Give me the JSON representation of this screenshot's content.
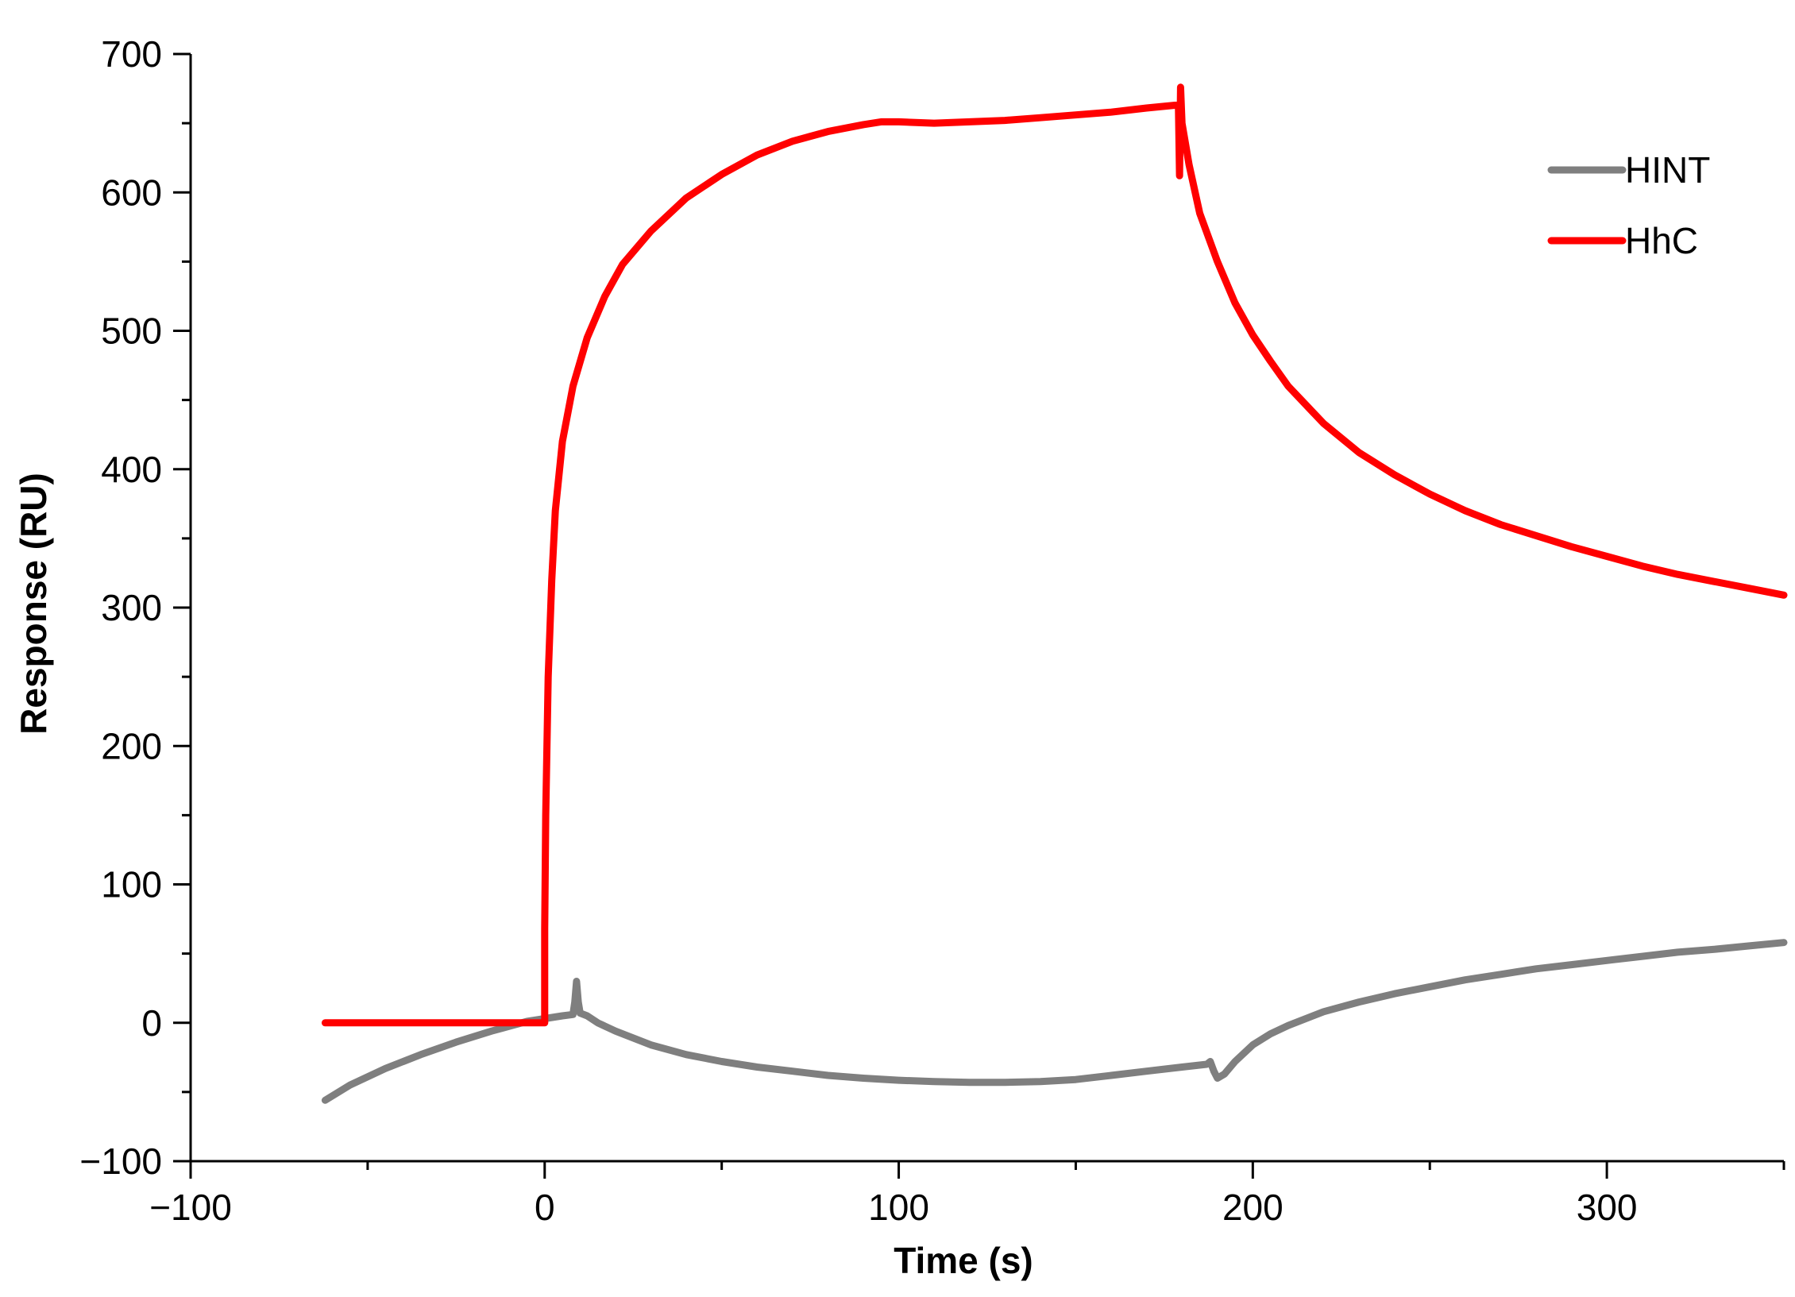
{
  "chart_data": {
    "type": "line",
    "title": "",
    "xlabel": "Time (s)",
    "ylabel": "Response (RU)",
    "xlim": [
      -100,
      350
    ],
    "ylim": [
      -100,
      700
    ],
    "x_ticks": [
      -100,
      0,
      100,
      200,
      300
    ],
    "x_tick_labels": [
      "−100",
      "0",
      "100",
      "200",
      "300"
    ],
    "y_ticks": [
      -100,
      0,
      100,
      200,
      300,
      400,
      500,
      600,
      700
    ],
    "y_tick_labels": [
      "−100",
      "0",
      "100",
      "200",
      "300",
      "400",
      "500",
      "600",
      "700"
    ],
    "grid": false,
    "legend_position": "top-right",
    "series": [
      {
        "name": "HINT",
        "color": "#7f7f7f",
        "points": [
          [
            -62,
            -56
          ],
          [
            -55,
            -45
          ],
          [
            -45,
            -33
          ],
          [
            -35,
            -23
          ],
          [
            -25,
            -14
          ],
          [
            -15,
            -6
          ],
          [
            -5,
            1
          ],
          [
            0,
            3
          ],
          [
            5,
            5
          ],
          [
            8,
            6
          ],
          [
            8.5,
            15
          ],
          [
            9,
            30
          ],
          [
            9.5,
            15
          ],
          [
            10,
            7
          ],
          [
            12,
            5
          ],
          [
            15,
            0
          ],
          [
            20,
            -6
          ],
          [
            30,
            -16
          ],
          [
            40,
            -23
          ],
          [
            50,
            -28
          ],
          [
            60,
            -32
          ],
          [
            70,
            -35
          ],
          [
            80,
            -38
          ],
          [
            90,
            -40
          ],
          [
            100,
            -41.5
          ],
          [
            110,
            -42.5
          ],
          [
            120,
            -43
          ],
          [
            130,
            -43
          ],
          [
            140,
            -42.5
          ],
          [
            150,
            -41
          ],
          [
            160,
            -38
          ],
          [
            170,
            -35
          ],
          [
            180,
            -32
          ],
          [
            187,
            -30
          ],
          [
            188,
            -28
          ],
          [
            189,
            -35
          ],
          [
            190,
            -40
          ],
          [
            192,
            -37
          ],
          [
            195,
            -28
          ],
          [
            200,
            -16
          ],
          [
            205,
            -8
          ],
          [
            210,
            -2
          ],
          [
            220,
            8
          ],
          [
            230,
            15
          ],
          [
            240,
            21
          ],
          [
            250,
            26
          ],
          [
            260,
            31
          ],
          [
            270,
            35
          ],
          [
            280,
            39
          ],
          [
            290,
            42
          ],
          [
            300,
            45
          ],
          [
            310,
            48
          ],
          [
            320,
            51
          ],
          [
            330,
            53
          ],
          [
            340,
            55.5
          ],
          [
            350,
            58
          ]
        ]
      },
      {
        "name": "HhC",
        "color": "#ff0000",
        "points": [
          [
            -62,
            0
          ],
          [
            -30,
            0
          ],
          [
            0,
            0
          ],
          [
            0,
            68
          ],
          [
            0.3,
            150
          ],
          [
            1,
            250
          ],
          [
            2,
            320
          ],
          [
            3,
            370
          ],
          [
            5,
            420
          ],
          [
            8,
            460
          ],
          [
            12,
            495
          ],
          [
            17,
            525
          ],
          [
            22,
            548
          ],
          [
            30,
            572
          ],
          [
            40,
            596
          ],
          [
            50,
            613
          ],
          [
            60,
            627
          ],
          [
            70,
            637
          ],
          [
            80,
            644
          ],
          [
            90,
            649
          ],
          [
            95,
            651
          ],
          [
            100,
            651
          ],
          [
            110,
            650
          ],
          [
            120,
            651
          ],
          [
            130,
            652
          ],
          [
            140,
            654
          ],
          [
            150,
            656
          ],
          [
            160,
            658
          ],
          [
            170,
            661
          ],
          [
            178,
            663
          ],
          [
            179,
            663
          ],
          [
            179.3,
            612
          ],
          [
            179.6,
            676
          ],
          [
            180,
            650
          ],
          [
            182,
            620
          ],
          [
            185,
            585
          ],
          [
            190,
            550
          ],
          [
            195,
            520
          ],
          [
            200,
            497
          ],
          [
            205,
            478
          ],
          [
            210,
            460
          ],
          [
            220,
            433
          ],
          [
            230,
            412
          ],
          [
            240,
            396
          ],
          [
            250,
            382
          ],
          [
            260,
            370
          ],
          [
            270,
            360
          ],
          [
            280,
            352
          ],
          [
            290,
            344
          ],
          [
            300,
            337
          ],
          [
            310,
            330
          ],
          [
            320,
            324
          ],
          [
            330,
            319
          ],
          [
            340,
            314
          ],
          [
            350,
            309
          ]
        ]
      }
    ]
  }
}
